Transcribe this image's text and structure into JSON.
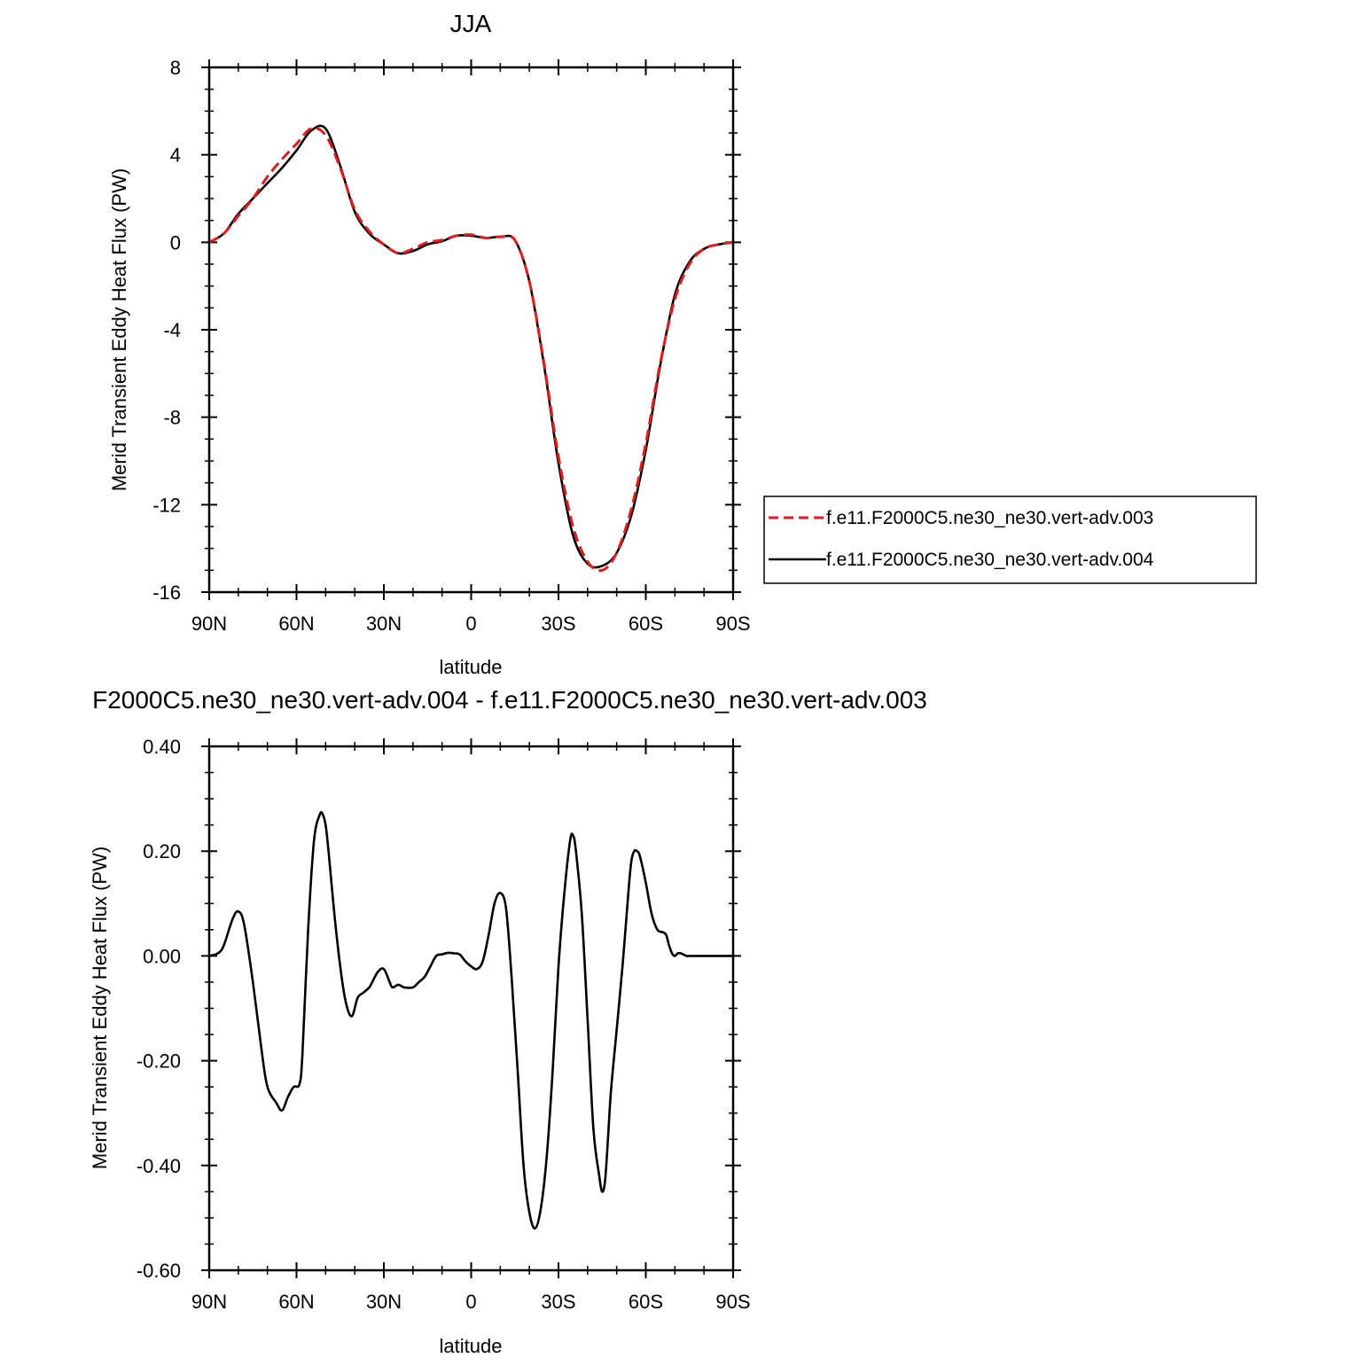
{
  "chart_data": [
    {
      "type": "line",
      "title": "JJA",
      "xlabel": "latitude",
      "ylabel": "Merid Transient Eddy Heat Flux (PW)",
      "xlim": [
        90,
        -90
      ],
      "ylim": [
        -16,
        8
      ],
      "xticks": [
        90,
        60,
        30,
        0,
        -30,
        -60,
        -90
      ],
      "xtick_labels": [
        "90N",
        "60N",
        "30N",
        "0",
        "30S",
        "60S",
        "90S"
      ],
      "yticks": [
        8,
        4,
        0,
        -4,
        -8,
        -12,
        -16
      ],
      "ytick_labels": [
        "8",
        "4",
        "0",
        "-4",
        "-8",
        "-12",
        "-16"
      ],
      "grid": false,
      "legend_position": "right",
      "series": [
        {
          "name": "f.e11.F2000C5.ne30_ne30.vert-adv.003",
          "color": "#e41a1c",
          "dash": "dashed",
          "x": [
            90,
            85,
            80,
            75,
            70,
            65,
            60,
            55,
            50,
            45,
            40,
            35,
            30,
            25,
            20,
            15,
            10,
            5,
            0,
            -5,
            -10,
            -15,
            -20,
            -25,
            -30,
            -35,
            -40,
            -45,
            -50,
            -55,
            -60,
            -65,
            -70,
            -75,
            -80,
            -85,
            -90
          ],
          "y": [
            0,
            0.4,
            1.2,
            2.0,
            3.0,
            3.8,
            4.5,
            5.2,
            4.9,
            3.4,
            1.5,
            0.5,
            -0.1,
            -0.5,
            -0.3,
            0,
            0.1,
            0.3,
            0.35,
            0.2,
            0.25,
            0.1,
            -1.8,
            -5.5,
            -9.8,
            -13.0,
            -14.6,
            -15.0,
            -14.2,
            -12.2,
            -9.2,
            -5.5,
            -2.6,
            -1.0,
            -0.3,
            -0.1,
            0
          ]
        },
        {
          "name": "f.e11.F2000C5.ne30_ne30.vert-adv.004",
          "color": "#000000",
          "dash": "solid",
          "x": [
            90,
            85,
            80,
            75,
            70,
            65,
            60,
            55,
            50,
            45,
            40,
            35,
            30,
            25,
            20,
            15,
            10,
            5,
            0,
            -5,
            -10,
            -15,
            -20,
            -25,
            -30,
            -35,
            -40,
            -45,
            -50,
            -55,
            -60,
            -65,
            -70,
            -75,
            -80,
            -85,
            -90
          ],
          "y": [
            0,
            0.4,
            1.3,
            2.0,
            2.7,
            3.4,
            4.2,
            5.1,
            5.2,
            3.5,
            1.4,
            0.4,
            -0.1,
            -0.5,
            -0.4,
            -0.1,
            0.05,
            0.3,
            0.3,
            0.2,
            0.25,
            0.1,
            -1.8,
            -5.6,
            -10.1,
            -13.4,
            -14.7,
            -14.8,
            -14.2,
            -12.5,
            -9.5,
            -5.6,
            -2.4,
            -0.9,
            -0.3,
            -0.1,
            0
          ]
        }
      ]
    },
    {
      "type": "line",
      "title": "F2000C5.ne30_ne30.vert-adv.004 - f.e11.F2000C5.ne30_ne30.vert-adv.003",
      "xlabel": "latitude",
      "ylabel": "Merid Transient Eddy Heat Flux (PW)",
      "xlim": [
        90,
        -90
      ],
      "ylim": [
        -0.6,
        0.4
      ],
      "xticks": [
        90,
        60,
        30,
        0,
        -30,
        -60,
        -90
      ],
      "xtick_labels": [
        "90N",
        "60N",
        "30N",
        "0",
        "30S",
        "60S",
        "90S"
      ],
      "yticks": [
        0.4,
        0.2,
        0,
        -0.2,
        -0.4,
        -0.6
      ],
      "ytick_labels": [
        "0.40",
        "0.20",
        "0.00",
        "-0.20",
        "-0.40",
        "-0.60"
      ],
      "grid": false,
      "series": [
        {
          "color": "#000000",
          "dash": "solid",
          "x": [
            90,
            87,
            85,
            82,
            80,
            78,
            75,
            72,
            70,
            67,
            65,
            63,
            61,
            59,
            58,
            56,
            54,
            52,
            51,
            50,
            49,
            47,
            45,
            43,
            41,
            39,
            37,
            35,
            34,
            32,
            30,
            28,
            27,
            25,
            23,
            20,
            18,
            16,
            14,
            12,
            10,
            8,
            6,
            4,
            2,
            0,
            -2,
            -4,
            -6,
            -8,
            -10,
            -12,
            -14,
            -16,
            -18,
            -20,
            -22,
            -24,
            -26,
            -28,
            -30,
            -32,
            -34,
            -35,
            -36,
            -38,
            -40,
            -42,
            -44,
            -45,
            -46,
            -47,
            -48,
            -50,
            -52,
            -54,
            -55,
            -56,
            -57,
            -58,
            -60,
            -62,
            -64,
            -66,
            -67,
            -68,
            -69,
            -70,
            -71,
            -72,
            -74,
            -75,
            -77,
            -79,
            -82,
            -84,
            -86,
            -88,
            -90
          ],
          "y": [
            0,
            0.005,
            0.02,
            0.07,
            0.085,
            0.06,
            -0.05,
            -0.18,
            -0.25,
            -0.28,
            -0.295,
            -0.27,
            -0.25,
            -0.245,
            -0.19,
            0.05,
            0.22,
            0.27,
            0.27,
            0.25,
            0.2,
            0.08,
            -0.02,
            -0.09,
            -0.115,
            -0.08,
            -0.07,
            -0.06,
            -0.05,
            -0.03,
            -0.025,
            -0.05,
            -0.06,
            -0.055,
            -0.06,
            -0.06,
            -0.05,
            -0.04,
            -0.02,
            0,
            0.003,
            0.006,
            0.005,
            0.003,
            -0.01,
            -0.02,
            -0.025,
            -0.01,
            0.04,
            0.1,
            0.12,
            0.09,
            -0.05,
            -0.22,
            -0.4,
            -0.49,
            -0.52,
            -0.48,
            -0.38,
            -0.22,
            -0.02,
            0.12,
            0.22,
            0.23,
            0.2,
            0.08,
            -0.12,
            -0.33,
            -0.42,
            -0.45,
            -0.43,
            -0.35,
            -0.26,
            -0.14,
            -0.02,
            0.12,
            0.18,
            0.2,
            0.2,
            0.19,
            0.14,
            0.08,
            0.05,
            0.045,
            0.04,
            0.02,
            0.005,
            0,
            0.005,
            0.005,
            0,
            0,
            0,
            0,
            0,
            0,
            0,
            0,
            0
          ]
        }
      ]
    }
  ]
}
